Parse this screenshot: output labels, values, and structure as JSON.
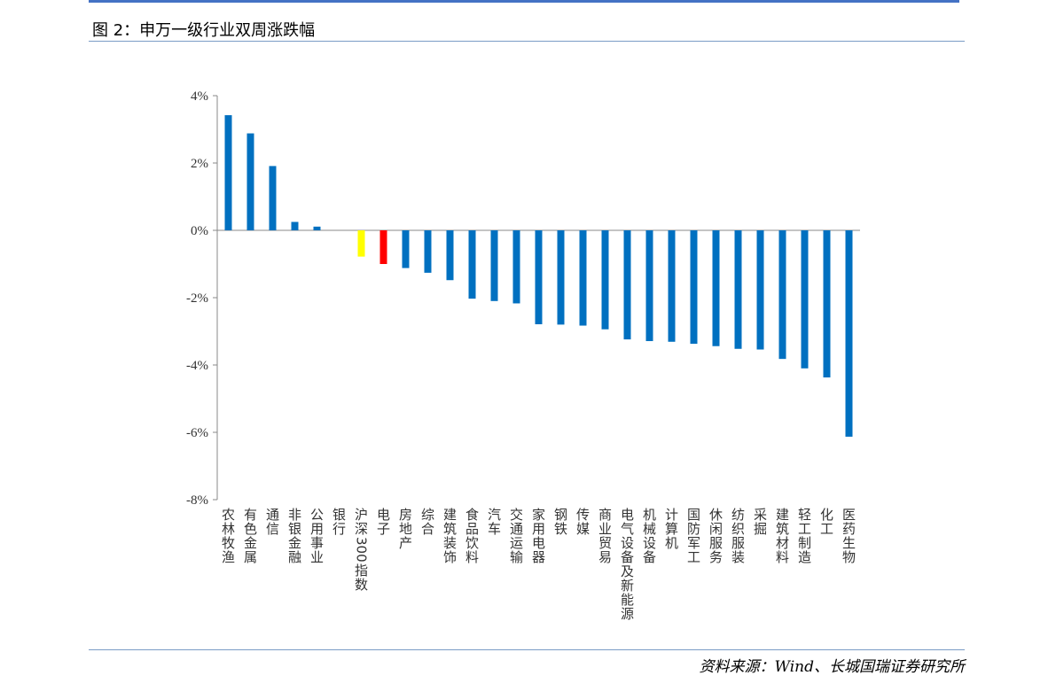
{
  "figure": {
    "title": "图 2：申万一级行业双周涨跌幅",
    "source": "资料来源：Wind、长城国瑞证券研究所"
  },
  "colors": {
    "default": "#0070c0",
    "index": "#ffff00",
    "highlight": "#ff0000",
    "rule": "#4472c4"
  },
  "chart_data": {
    "type": "bar",
    "title": "",
    "xlabel": "",
    "ylabel": "",
    "ylim": [
      -8,
      4
    ],
    "yticks": [
      "4%",
      "2%",
      "0%",
      "-2%",
      "-4%",
      "-6%",
      "-8%"
    ],
    "grid": false,
    "legend": "none",
    "categories": [
      "农林牧渔",
      "有色金属",
      "通信",
      "非银金融",
      "公用事业",
      "银行",
      "沪深300指数",
      "电子",
      "房地产",
      "综合",
      "建筑装饰",
      "食品饮料",
      "汽车",
      "交通运输",
      "家用电器",
      "钢铁",
      "传媒",
      "商业贸易",
      "电气设备及新能源",
      "机械设备",
      "计算机",
      "国防军工",
      "休闲服务",
      "纺织服装",
      "采掘",
      "建筑材料",
      "轻工制造",
      "化工",
      "医药生物"
    ],
    "values": [
      3.42,
      2.88,
      1.91,
      0.25,
      0.11,
      0.0,
      -0.78,
      -1.0,
      -1.12,
      -1.26,
      -1.48,
      -2.03,
      -2.1,
      -2.17,
      -2.79,
      -2.8,
      -2.83,
      -2.94,
      -3.24,
      -3.29,
      -3.31,
      -3.37,
      -3.44,
      -3.52,
      -3.54,
      -3.82,
      -4.1,
      -4.37,
      -6.13
    ],
    "bar_colors": [
      "default",
      "default",
      "default",
      "default",
      "default",
      "default",
      "index",
      "highlight",
      "default",
      "default",
      "default",
      "default",
      "default",
      "default",
      "default",
      "default",
      "default",
      "default",
      "default",
      "default",
      "default",
      "default",
      "default",
      "default",
      "default",
      "default",
      "default",
      "default",
      "default"
    ]
  }
}
